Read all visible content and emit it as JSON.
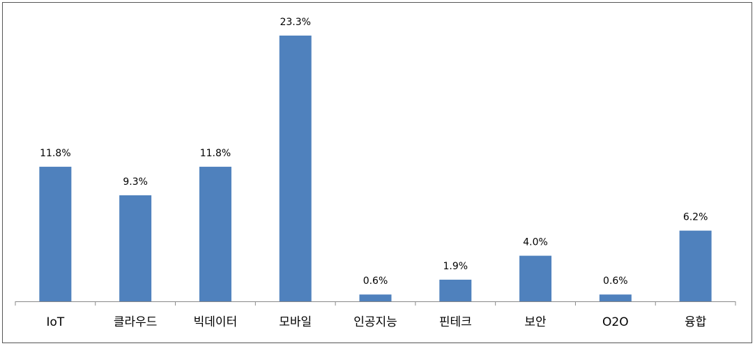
{
  "chart_data": {
    "type": "bar",
    "categories": [
      "IoT",
      "클라우드",
      "빅데이터",
      "모바일",
      "인공지능",
      "핀테크",
      "보안",
      "O2O",
      "융합"
    ],
    "values": [
      11.8,
      9.3,
      11.8,
      23.3,
      0.6,
      1.9,
      4.0,
      0.6,
      6.2
    ],
    "value_labels": [
      "11.8%",
      "9.3%",
      "11.8%",
      "23.3%",
      "0.6%",
      "1.9%",
      "4.0%",
      "0.6%",
      "6.2%"
    ],
    "color": "#4f81bd"
  }
}
